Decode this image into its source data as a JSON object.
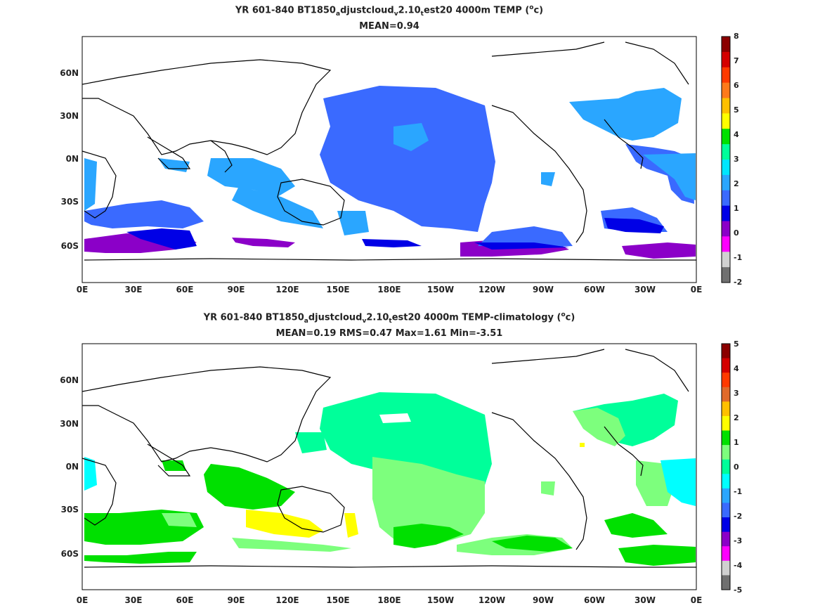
{
  "map_top": {
    "title_parts": [
      "YR 601-840 BT1850",
      "a",
      "djustcloud",
      "v",
      "2.10",
      "t",
      "est20 4000m TEMP (",
      "o",
      "c)"
    ],
    "subtitle": "MEAN=0.94",
    "lon_ticks": [
      "0E",
      "30E",
      "60E",
      "90E",
      "120E",
      "150E",
      "180E",
      "150W",
      "120W",
      "90W",
      "60W",
      "30W",
      "0E"
    ],
    "lat_ticks": [
      "60N",
      "30N",
      "0N",
      "30S",
      "60S"
    ],
    "colorbar": {
      "labels": [
        "8",
        "7",
        "6",
        "5",
        "4",
        "3",
        "2",
        "1",
        "0",
        "-0",
        "-1",
        "-2"
      ],
      "colors": [
        "#8b0000",
        "#d40000",
        "#ff3a00",
        "#ff7a1a",
        "#ffc000",
        "#ffff00",
        "#00e000",
        "#00ff9a",
        "#00e6ff",
        "#2aa6ff",
        "#3a6aff",
        "#0000e6",
        "#8b00c8",
        "#ff00ff",
        "#d0d0d0",
        "#707070"
      ]
    }
  },
  "map_bottom": {
    "title_parts": [
      "YR 601-840 BT1850",
      "a",
      "djustcloud",
      "v",
      "2.10",
      "t",
      "est20 4000m TEMP-climatology (",
      "o",
      "c)"
    ],
    "subtitle": "MEAN=0.19   RMS=0.47   Max=1.61   Min=-3.51",
    "lon_ticks": [
      "0E",
      "30E",
      "60E",
      "90E",
      "120E",
      "150E",
      "180E",
      "150W",
      "120W",
      "90W",
      "60W",
      "30W",
      "0E"
    ],
    "lat_ticks": [
      "60N",
      "30N",
      "0N",
      "30S",
      "60S"
    ],
    "colorbar": {
      "labels": [
        "5",
        "4",
        "3",
        "2",
        "1",
        "0",
        "-1",
        "-2",
        "-3",
        "-4",
        "-5"
      ],
      "colors": [
        "#8b0000",
        "#d40000",
        "#ff3a00",
        "#e06a2a",
        "#ffc000",
        "#ffff00",
        "#00e000",
        "#7dff7d",
        "#00ff9a",
        "#00ffff",
        "#2aa6ff",
        "#3a6aff",
        "#0000e6",
        "#8b00c8",
        "#ff00ff",
        "#d0d0d0",
        "#707070"
      ]
    }
  }
}
